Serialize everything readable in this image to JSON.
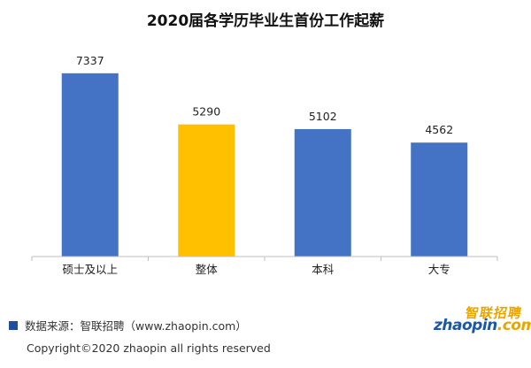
{
  "chart_data": {
    "type": "bar",
    "title": "2020届各学历毕业生首份工作起薪",
    "categories": [
      "硕士及以上",
      "整体",
      "本科",
      "大专"
    ],
    "values": [
      7337,
      5290,
      5102,
      4562
    ],
    "bar_colors": [
      "#4472c4",
      "#ffc000",
      "#4472c4",
      "#4472c4"
    ],
    "ylim": [
      0,
      8500
    ],
    "grid": false,
    "legend": "none"
  },
  "footer": {
    "source": "数据来源：智联招聘（www.zhaopin.com）",
    "copyright": "Copyright©2020 zhaopin all rights reserved"
  },
  "logo": {
    "brand": "智联招聘",
    "domain": "zhaopin",
    "tld": ".com"
  }
}
